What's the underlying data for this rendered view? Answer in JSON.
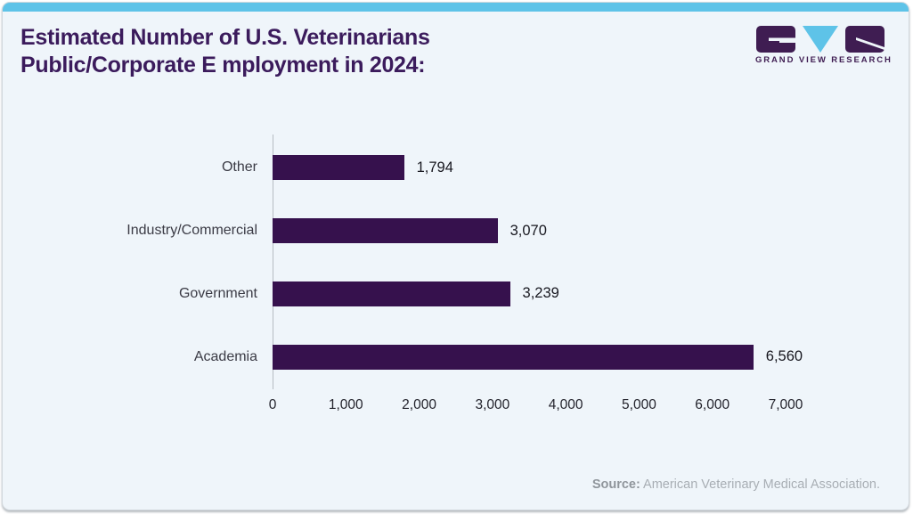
{
  "card": {
    "background": "#eff5fa",
    "accent_bar_color": "#5ec3e8"
  },
  "header": {
    "title_line1": "Estimated Number of U.S. Veterinarians",
    "title_line2": "Public/Corporate E mployment in 2024:",
    "title_color": "#3b1b5c"
  },
  "logo": {
    "name": "Grand View Research logo",
    "text": "GRAND VIEW RESEARCH",
    "purple": "#3f1d52",
    "cyan": "#5ec3e8"
  },
  "chart_data": {
    "type": "bar",
    "orientation": "horizontal",
    "title": "Estimated Number of U.S. Veterinarians Public/Corporate E mployment in 2024:",
    "categories": [
      "Other",
      "Industry/Commercial",
      "Government",
      "Academia"
    ],
    "values": [
      1794,
      3070,
      3239,
      6560
    ],
    "value_labels": [
      "1,794",
      "3,070",
      "3,239",
      "6,560"
    ],
    "x_ticks": [
      "0",
      "1,000",
      "2,000",
      "3,000",
      "4,000",
      "5,000",
      "6,000",
      "7,000"
    ],
    "xlim": [
      0,
      7000
    ],
    "bar_color": "#36114d",
    "grid": false,
    "legend": "none"
  },
  "footer": {
    "source_label": "Source:",
    "source_text": " American Veterinary Medical Association."
  }
}
